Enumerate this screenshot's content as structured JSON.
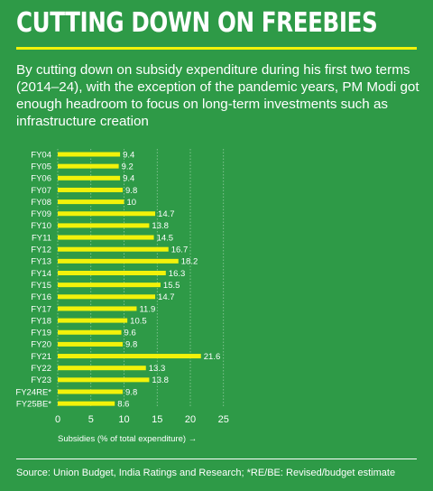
{
  "title": "CUTTING DOWN ON FREEBIES",
  "subtitle": "By cutting down on subsidy expenditure during his first two terms (2014–24), with the exception of the pandemic years, PM Modi got enough headroom to focus on long-term investments such as infrastructure creation",
  "source": "Source: Union Budget, India Ratings and Research; *RE/BE: Revised/budget estimate",
  "colors": {
    "background": "#2e9a47",
    "bar": "#f2f20a",
    "text": "#ffffff"
  },
  "chart_data": {
    "type": "bar",
    "orientation": "horizontal",
    "categories": [
      "FY04",
      "FY05",
      "FY06",
      "FY07",
      "FY08",
      "FY09",
      "FY10",
      "FY11",
      "FY12",
      "FY13",
      "FY14",
      "FY15",
      "FY16",
      "FY17",
      "FY18",
      "FY19",
      "FY20",
      "FY21",
      "FY22",
      "FY23",
      "FY24RE*",
      "FY25BE*"
    ],
    "values": [
      9.4,
      9.2,
      9.4,
      9.8,
      10,
      14.7,
      13.8,
      14.5,
      16.7,
      18.2,
      16.3,
      15.5,
      14.7,
      11.9,
      10.5,
      9.6,
      9.8,
      21.6,
      13.3,
      13.8,
      9.8,
      8.6
    ],
    "value_labels": [
      "9.4",
      "9.2",
      "9.4",
      "9.8",
      "10",
      "14.7",
      "13.8",
      "14.5",
      "16.7",
      "18.2",
      "16.3",
      "15.5",
      "14.7",
      "11.9",
      "10.5",
      "9.6",
      "9.8",
      "21.6",
      "13.3",
      "13.8",
      "9.8",
      "8.6"
    ],
    "xlabel": "Subsidies (% of total expenditure)  →",
    "xlim": [
      0,
      25
    ],
    "xticks": [
      "0",
      "5",
      "10",
      "15",
      "20",
      "25"
    ],
    "grid": true
  }
}
